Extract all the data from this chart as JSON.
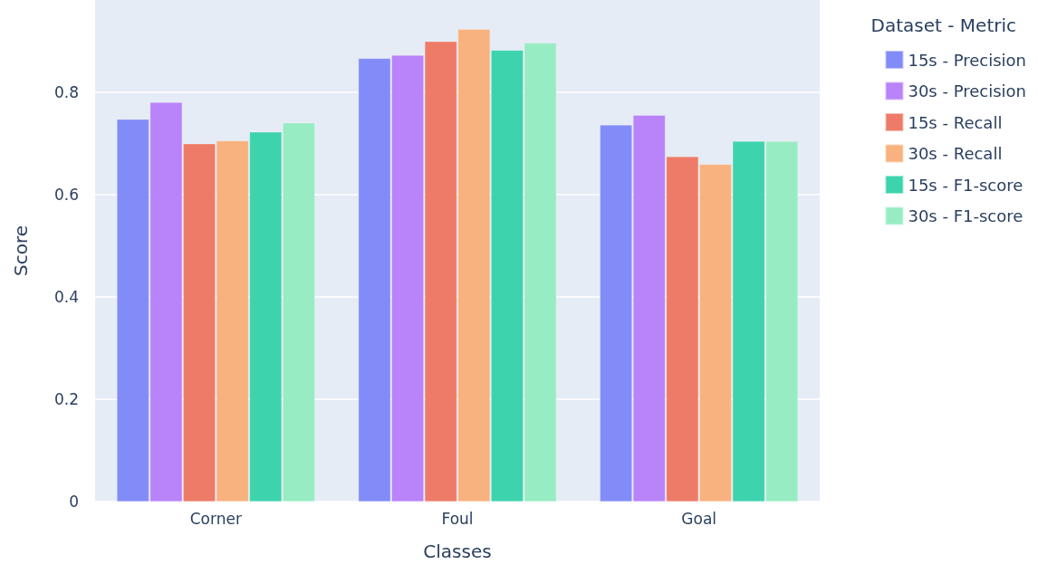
{
  "chart_data": {
    "type": "bar",
    "xlabel": "Classes",
    "ylabel": "Score",
    "legend_title": "Dataset - Metric",
    "categories": [
      "Corner",
      "Foul",
      "Goal"
    ],
    "series": [
      {
        "name": "15s - Precision",
        "color": "#828cf8",
        "values": [
          0.747,
          0.866,
          0.736
        ]
      },
      {
        "name": "30s - Precision",
        "color": "#b983f9",
        "values": [
          0.78,
          0.872,
          0.755
        ]
      },
      {
        "name": "15s - Recall",
        "color": "#ee7b67",
        "values": [
          0.699,
          0.899,
          0.674
        ]
      },
      {
        "name": "30s - Recall",
        "color": "#f8b27f",
        "values": [
          0.705,
          0.923,
          0.659
        ]
      },
      {
        "name": "15s - F1-score",
        "color": "#3dd3ad",
        "values": [
          0.722,
          0.882,
          0.704
        ]
      },
      {
        "name": "30s - F1-score",
        "color": "#98ecc3",
        "values": [
          0.74,
          0.896,
          0.704
        ]
      }
    ],
    "ylim": [
      0,
      0.98
    ],
    "yticks": [
      0,
      0.2,
      0.4,
      0.6,
      0.8
    ],
    "grid": "y",
    "legend": "top right"
  }
}
